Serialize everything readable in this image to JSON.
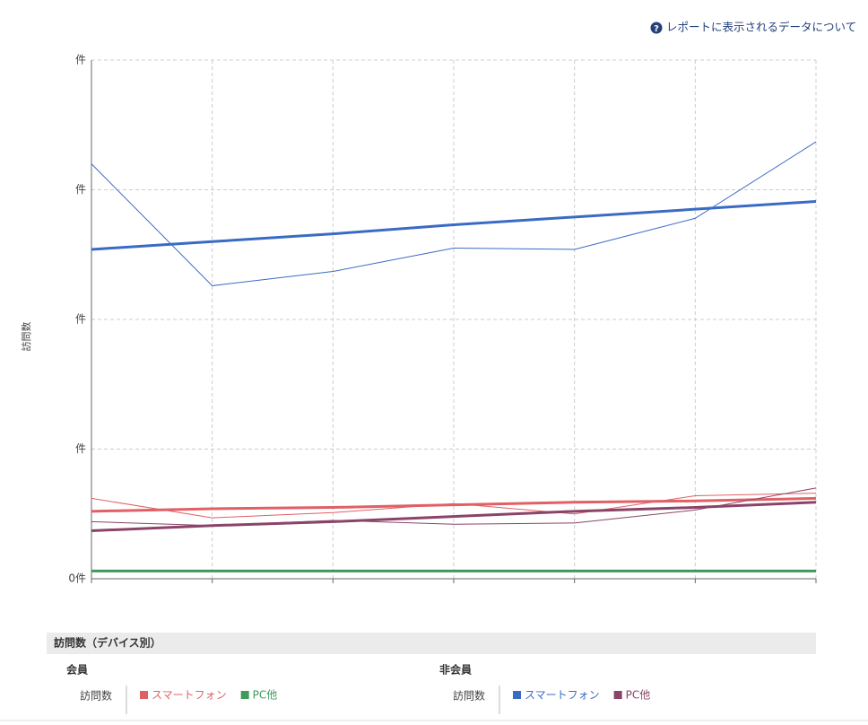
{
  "chart_data": {
    "type": "line",
    "help_link": "レポートに表示されるデータについて",
    "y_label": "訪問数",
    "categories": [
      null,
      null,
      null,
      null,
      null,
      null,
      null
    ],
    "ylim": [
      0,
      4
    ],
    "yticks": [
      {
        "value": 0,
        "label": "0件"
      },
      {
        "value": 1,
        "label": "件"
      },
      {
        "value": 2,
        "label": "件"
      },
      {
        "value": 3,
        "label": "件"
      },
      {
        "value": 4,
        "label": "件"
      }
    ],
    "grid": true,
    "legend_title": "訪問数（デバイス別）",
    "groups": [
      {
        "name": "会員",
        "measure": "訪問数",
        "series": [
          {
            "name": "スマートフォン",
            "color": "#e06066",
            "values": [
              0.62,
              0.47,
              0.51,
              0.58,
              0.5,
              0.64,
              0.66
            ],
            "trend_values": [
              0.52,
              0.54,
              0.55,
              0.57,
              0.59,
              0.6,
              0.62
            ]
          },
          {
            "name": "PC他",
            "color": "#3d9a5a",
            "values": [
              0.06,
              0.06,
              0.06,
              0.06,
              0.06,
              0.06,
              0.06
            ],
            "trend_values": [
              0.06,
              0.06,
              0.06,
              0.06,
              0.06,
              0.06,
              0.06
            ]
          }
        ]
      },
      {
        "name": "非会員",
        "measure": "訪問数",
        "series": [
          {
            "name": "スマートフォン",
            "color": "#3a6bc4",
            "values": [
              3.2,
              2.26,
              2.37,
              2.55,
              2.54,
              2.78,
              3.37
            ],
            "trend_values": [
              2.54,
              2.6,
              2.66,
              2.73,
              2.79,
              2.85,
              2.91
            ]
          },
          {
            "name": "PC他",
            "color": "#8a4468",
            "values": [
              0.44,
              0.41,
              0.45,
              0.42,
              0.43,
              0.53,
              0.7
            ],
            "trend_values": [
              0.37,
              0.41,
              0.44,
              0.48,
              0.52,
              0.55,
              0.59
            ]
          }
        ]
      }
    ]
  }
}
